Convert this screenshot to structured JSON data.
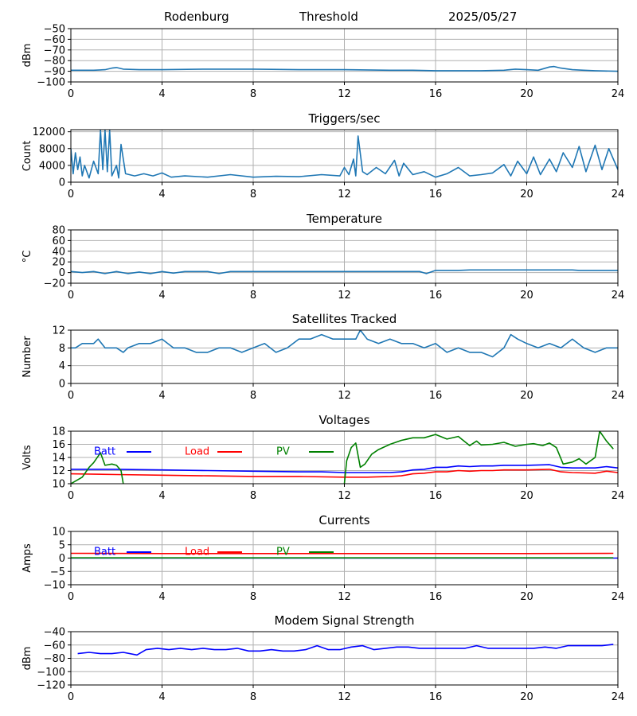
{
  "header": {
    "station": "Rodenburg",
    "mode": "Threshold",
    "date": "2025/05/27"
  },
  "colors": {
    "series_default": "#1f77b4",
    "batt": "#0000ff",
    "load": "#ff0000",
    "pv": "#008000",
    "grid": "#b0b0b0"
  },
  "chart_data": [
    {
      "id": "threshold",
      "type": "line",
      "title": "",
      "xlabel": "",
      "ylabel": "dBm",
      "xlim": [
        0,
        24
      ],
      "ylim": [
        -100,
        -50
      ],
      "xticks": [
        0,
        4,
        8,
        12,
        16,
        20,
        24
      ],
      "yticks": [
        -100,
        -90,
        -80,
        -70,
        -60,
        -50
      ],
      "grid": true,
      "series": [
        {
          "color": "#1f77b4",
          "x": [
            0,
            1,
            1.5,
            1.8,
            2.0,
            2.3,
            3,
            4,
            6,
            8,
            10,
            12,
            14,
            15,
            16,
            17,
            18,
            19,
            19.5,
            20,
            20.5,
            21,
            21.2,
            21.5,
            22,
            22.5,
            23,
            24
          ],
          "y": [
            -89,
            -89,
            -88.5,
            -87,
            -86.5,
            -88,
            -88.5,
            -88.5,
            -88,
            -88,
            -88.5,
            -88.5,
            -89,
            -89,
            -89.5,
            -89.5,
            -89.5,
            -89,
            -88,
            -88.5,
            -89,
            -86,
            -85.5,
            -87,
            -88.5,
            -89,
            -89.5,
            -90
          ]
        }
      ]
    },
    {
      "id": "triggers",
      "type": "line",
      "title": "Triggers/sec",
      "xlabel": "",
      "ylabel": "Count",
      "xlim": [
        0,
        24
      ],
      "ylim": [
        0,
        12500
      ],
      "xticks": [
        0,
        4,
        8,
        12,
        16,
        20,
        24
      ],
      "yticks": [
        0,
        4000,
        8000,
        12000
      ],
      "grid": true,
      "series": [
        {
          "color": "#1f77b4",
          "x": [
            0,
            0.1,
            0.2,
            0.3,
            0.4,
            0.5,
            0.6,
            0.8,
            1.0,
            1.2,
            1.3,
            1.4,
            1.5,
            1.6,
            1.7,
            1.8,
            2.0,
            2.1,
            2.2,
            2.4,
            2.8,
            3.2,
            3.6,
            4.0,
            4.4,
            5.0,
            6.0,
            7.0,
            8.0,
            9.0,
            10.0,
            11.0,
            11.8,
            12.0,
            12.2,
            12.4,
            12.5,
            12.6,
            12.8,
            13.0,
            13.4,
            13.8,
            14.2,
            14.4,
            14.6,
            15.0,
            15.5,
            16.0,
            16.5,
            17.0,
            17.5,
            18.0,
            18.5,
            19.0,
            19.3,
            19.6,
            20.0,
            20.3,
            20.6,
            21.0,
            21.3,
            21.6,
            22.0,
            22.3,
            22.6,
            23.0,
            23.3,
            23.6,
            24.0
          ],
          "y": [
            8000,
            2000,
            7000,
            3000,
            6000,
            1500,
            4000,
            1000,
            5000,
            2000,
            12400,
            3000,
            12400,
            2500,
            12400,
            1500,
            4000,
            1000,
            9000,
            2000,
            1500,
            2000,
            1500,
            2200,
            1200,
            1500,
            1200,
            1800,
            1200,
            1400,
            1300,
            1800,
            1500,
            3500,
            1800,
            5500,
            1500,
            11000,
            2500,
            1800,
            3500,
            2000,
            5200,
            1500,
            4500,
            1800,
            2500,
            1200,
            2000,
            3500,
            1500,
            1800,
            2200,
            4200,
            1500,
            5000,
            2000,
            6000,
            1800,
            5500,
            2500,
            7000,
            3500,
            8500,
            2500,
            8800,
            3000,
            8000,
            3000
          ]
        }
      ]
    },
    {
      "id": "temperature",
      "type": "line",
      "title": "Temperature",
      "xlabel": "",
      "ylabel": "°C",
      "xlim": [
        0,
        24
      ],
      "ylim": [
        -20,
        80
      ],
      "xticks": [
        0,
        4,
        8,
        12,
        16,
        20,
        24
      ],
      "yticks": [
        -20,
        0,
        20,
        40,
        60,
        80
      ],
      "grid": true,
      "series": [
        {
          "color": "#1f77b4",
          "x": [
            0,
            0.5,
            1.0,
            1.5,
            2.0,
            2.5,
            3.0,
            3.5,
            4.0,
            4.5,
            5.0,
            6.0,
            6.5,
            7.0,
            8.0,
            10.0,
            12.0,
            14.0,
            15.3,
            15.6,
            16.0,
            17.0,
            17.5,
            19.0,
            21.0,
            22.0,
            22.3,
            24.0
          ],
          "y": [
            2,
            0,
            2,
            -2,
            2,
            -2,
            1,
            -2,
            2,
            -1,
            2,
            2,
            -2,
            2,
            2,
            2,
            2,
            2,
            2,
            -2,
            4,
            4,
            5,
            5,
            5,
            5,
            4,
            4
          ]
        }
      ]
    },
    {
      "id": "satellites",
      "type": "line",
      "title": "Satellites Tracked",
      "xlabel": "",
      "ylabel": "Number",
      "xlim": [
        0,
        24
      ],
      "ylim": [
        0,
        12
      ],
      "xticks": [
        0,
        4,
        8,
        12,
        16,
        20,
        24
      ],
      "yticks": [
        0,
        4,
        8,
        12
      ],
      "grid": true,
      "series": [
        {
          "color": "#1f77b4",
          "x": [
            0,
            0.2,
            0.5,
            1.0,
            1.2,
            1.5,
            2.0,
            2.3,
            2.5,
            3.0,
            3.5,
            4.0,
            4.5,
            5.0,
            5.5,
            6.0,
            6.5,
            7.0,
            7.5,
            8.0,
            8.5,
            9.0,
            9.5,
            10.0,
            10.5,
            11.0,
            11.5,
            12.0,
            12.5,
            12.7,
            13.0,
            13.5,
            14.0,
            14.5,
            15.0,
            15.5,
            16.0,
            16.5,
            17.0,
            17.5,
            18.0,
            18.5,
            19.0,
            19.3,
            19.6,
            20.0,
            20.5,
            21.0,
            21.5,
            22.0,
            22.5,
            23.0,
            23.5,
            24.0
          ],
          "y": [
            8,
            8,
            9,
            9,
            10,
            8,
            8,
            7,
            8,
            9,
            9,
            10,
            8,
            8,
            7,
            7,
            8,
            8,
            7,
            8,
            9,
            7,
            8,
            10,
            10,
            11,
            10,
            10,
            10,
            12,
            10,
            9,
            10,
            9,
            9,
            8,
            9,
            7,
            8,
            7,
            7,
            6,
            8,
            11,
            10,
            9,
            8,
            9,
            8,
            10,
            8,
            7,
            8,
            8
          ]
        }
      ]
    },
    {
      "id": "voltages",
      "type": "line",
      "title": "Voltages",
      "xlabel": "",
      "ylabel": "Volts",
      "xlim": [
        0,
        24
      ],
      "ylim": [
        10,
        18
      ],
      "xticks": [
        0,
        4,
        8,
        12,
        16,
        20,
        24
      ],
      "yticks": [
        10,
        12,
        14,
        16,
        18
      ],
      "grid": true,
      "legend": "top-left",
      "series": [
        {
          "name": "Batt",
          "color": "#0000ff",
          "x": [
            0,
            2,
            4,
            6,
            8,
            10,
            11,
            12,
            13,
            14,
            14.5,
            15,
            15.5,
            16,
            16.5,
            17,
            17.5,
            18,
            18.5,
            19,
            19.5,
            20,
            21,
            21.5,
            22,
            23,
            23.5,
            24
          ],
          "y": [
            12.2,
            12.2,
            12.1,
            12.0,
            11.9,
            11.8,
            11.8,
            11.7,
            11.7,
            11.7,
            11.8,
            12.1,
            12.2,
            12.5,
            12.5,
            12.7,
            12.6,
            12.7,
            12.7,
            12.8,
            12.8,
            12.8,
            12.9,
            12.5,
            12.4,
            12.4,
            12.6,
            12.4
          ]
        },
        {
          "name": "Load",
          "color": "#ff0000",
          "x": [
            0,
            2,
            4,
            6,
            8,
            10,
            12,
            13,
            14,
            14.5,
            15,
            15.5,
            16,
            16.5,
            17,
            17.5,
            18,
            18.5,
            19,
            20,
            21,
            21.5,
            22,
            23,
            23.5,
            24
          ],
          "y": [
            11.5,
            11.4,
            11.3,
            11.2,
            11.1,
            11.1,
            11.0,
            11.0,
            11.1,
            11.2,
            11.5,
            11.6,
            11.8,
            11.8,
            12.0,
            11.9,
            12.0,
            12.0,
            12.1,
            12.1,
            12.2,
            11.8,
            11.7,
            11.6,
            11.9,
            11.7
          ]
        },
        {
          "name": "PV",
          "color": "#008000",
          "x": [
            0,
            0.5,
            0.8,
            1.0,
            1.3,
            1.5,
            1.8,
            2.0,
            2.2,
            2.3,
            2.3,
            12.0,
            12.1,
            12.3,
            12.5,
            12.7,
            12.9,
            13.2,
            13.5,
            14.0,
            14.5,
            15.0,
            15.5,
            16.0,
            16.5,
            17.0,
            17.5,
            17.8,
            18.0,
            18.5,
            19.0,
            19.5,
            20.0,
            20.3,
            20.7,
            21.0,
            21.3,
            21.6,
            22.0,
            22.3,
            22.6,
            23.0,
            23.2,
            23.5,
            23.8
          ],
          "y": [
            10.0,
            11.0,
            12.5,
            13.2,
            14.7,
            12.8,
            13.0,
            12.8,
            12.0,
            10.0,
            null,
            10.0,
            13.5,
            15.5,
            16.2,
            12.5,
            13.0,
            14.5,
            15.2,
            16.0,
            16.6,
            17.0,
            17.0,
            17.5,
            16.8,
            17.2,
            15.8,
            16.5,
            15.9,
            16.0,
            16.3,
            15.7,
            16.0,
            16.1,
            15.8,
            16.2,
            15.5,
            13.0,
            13.3,
            13.8,
            13.0,
            14.0,
            18.0,
            16.5,
            15.3
          ]
        }
      ]
    },
    {
      "id": "currents",
      "type": "line",
      "title": "Currents",
      "xlabel": "",
      "ylabel": "Amps",
      "xlim": [
        0,
        24
      ],
      "ylim": [
        -10,
        10
      ],
      "xticks": [
        0,
        4,
        8,
        12,
        16,
        20,
        24
      ],
      "yticks": [
        -10,
        -5,
        0,
        5,
        10
      ],
      "grid": true,
      "legend": "top-left",
      "series": [
        {
          "name": "Batt",
          "color": "#0000ff",
          "x": [
            0,
            24
          ],
          "y": [
            0,
            0
          ]
        },
        {
          "name": "Load",
          "color": "#ff0000",
          "x": [
            0,
            4,
            8,
            12,
            16,
            20,
            23.8
          ],
          "y": [
            1.8,
            1.7,
            1.7,
            1.7,
            1.7,
            1.7,
            1.8
          ]
        },
        {
          "name": "PV",
          "color": "#008000",
          "x": [
            0,
            23.8
          ],
          "y": [
            0.1,
            0.1
          ]
        }
      ]
    },
    {
      "id": "modem",
      "type": "line",
      "title": "Modem Signal Strength",
      "xlabel": "",
      "ylabel": "dBm",
      "xlim": [
        0,
        24
      ],
      "ylim": [
        -120,
        -40
      ],
      "xticks": [
        0,
        4,
        8,
        12,
        16,
        20,
        24
      ],
      "yticks": [
        -120,
        -100,
        -80,
        -60,
        -40
      ],
      "grid": true,
      "series": [
        {
          "color": "#0000ff",
          "x": [
            0.3,
            0.8,
            1.3,
            1.8,
            2.3,
            2.9,
            3.3,
            3.8,
            4.3,
            4.8,
            5.3,
            5.8,
            6.3,
            6.8,
            7.3,
            7.8,
            8.3,
            8.8,
            9.3,
            9.8,
            10.3,
            10.8,
            11.3,
            11.8,
            12.3,
            12.8,
            13.3,
            13.8,
            14.3,
            14.8,
            15.3,
            15.8,
            16.3,
            16.8,
            17.3,
            17.8,
            18.3,
            18.8,
            19.3,
            19.8,
            20.3,
            20.8,
            21.3,
            21.8,
            22.3,
            22.8,
            23.3,
            23.8
          ],
          "y": [
            -73,
            -71,
            -73,
            -73,
            -71,
            -75,
            -67,
            -65,
            -67,
            -65,
            -67,
            -65,
            -67,
            -67,
            -65,
            -69,
            -69,
            -67,
            -69,
            -69,
            -67,
            -61,
            -67,
            -67,
            -63,
            -61,
            -67,
            -65,
            -63,
            -63,
            -65,
            -65,
            -65,
            -65,
            -65,
            -61,
            -65,
            -65,
            -65,
            -65,
            -65,
            -63,
            -65,
            -61,
            -61,
            -61,
            -61,
            -59
          ]
        }
      ]
    }
  ]
}
